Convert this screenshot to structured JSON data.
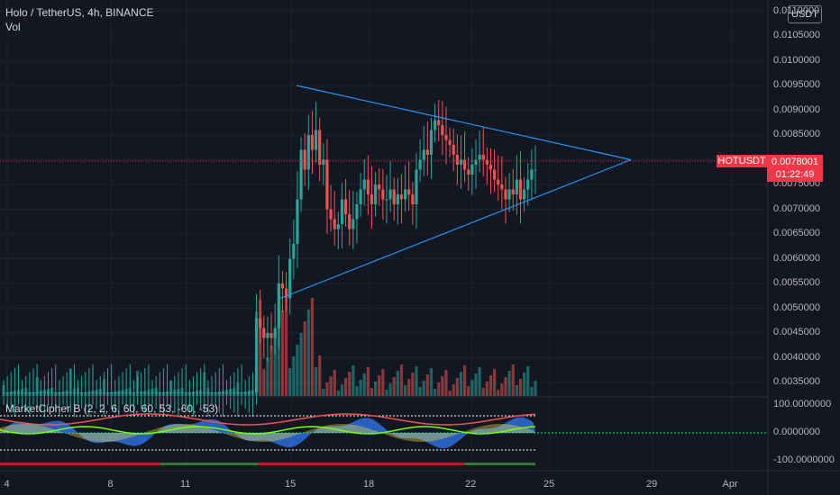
{
  "header": {
    "title": "Holo / TetherUS, 4h, BINANCE",
    "vol_label": "Vol",
    "indicator_label": "MarketCipher B (2, 2, 6, 60, 60, 53, -60, -53)"
  },
  "currency_badge": "USDT",
  "price_axis": {
    "labels": [
      "0.0110000",
      "0.0105000",
      "0.0100000",
      "0.0095000",
      "0.0090000",
      "0.0085000",
      "0.0080000",
      "0.0075000",
      "0.0070000",
      "0.0065000",
      "0.0060000",
      "0.0055000",
      "0.0050000",
      "0.0045000",
      "0.0040000",
      "0.0035000"
    ]
  },
  "indicator_axis": {
    "labels": [
      "100.0000000",
      "0.0000000",
      "-100.0000000"
    ]
  },
  "time_axis": {
    "labels": [
      "4",
      "8",
      "11",
      "15",
      "18",
      "22",
      "25",
      "29",
      "Apr"
    ]
  },
  "symbol_tag": "HOTUSDT",
  "last_price": "0.0078001",
  "countdown": "01:22:49",
  "colors": {
    "background": "#131722",
    "up": "#26a69a",
    "down": "#ef5350",
    "trendline": "#2196f3",
    "price_tag": "#f23645"
  },
  "chart_data": {
    "type": "candlestick",
    "title": "Holo / TetherUS, 4h, BINANCE",
    "x_ticks": [
      "4",
      "8",
      "11",
      "15",
      "18",
      "22",
      "25",
      "29",
      "Apr"
    ],
    "price_range": [
      0.0031,
      0.0111
    ],
    "last_price": 0.0078001,
    "price_series_approx": [
      0.0033,
      0.0033,
      0.0033,
      0.0033,
      0.0033,
      0.0033,
      0.0033,
      0.0033,
      0.0033,
      0.0033,
      0.0033,
      0.0033,
      0.0033,
      0.0033,
      0.0033,
      0.0033,
      0.0033,
      0.0033,
      0.0033,
      0.0033,
      0.0033,
      0.0033,
      0.0033,
      0.0033,
      0.0033,
      0.0033,
      0.0033,
      0.0033,
      0.0033,
      0.0033,
      0.0033,
      0.0033,
      0.0033,
      0.0033,
      0.0033,
      0.0033,
      0.0033,
      0.0033,
      0.0033,
      0.0033,
      0.0033,
      0.0033,
      0.0033,
      0.0033,
      0.0033,
      0.0033,
      0.0033,
      0.0033,
      0.0033,
      0.0033,
      0.0033,
      0.0033,
      0.0033,
      0.0033,
      0.0033,
      0.0033,
      0.0033,
      0.0033,
      0.0033,
      0.0033,
      0.0033,
      0.0033,
      0.0033,
      0.0033,
      0.0033,
      0.0033,
      0.0033,
      0.0033,
      0.0048,
      0.0046,
      0.0044,
      0.0045,
      0.0044,
      0.0046,
      0.0055,
      0.0054,
      0.0052,
      0.006,
      0.0063,
      0.0072,
      0.0082,
      0.0078,
      0.0085,
      0.0082,
      0.0086,
      0.0079,
      0.008,
      0.007,
      0.0068,
      0.0066,
      0.0067,
      0.0072,
      0.0069,
      0.0066,
      0.0068,
      0.0071,
      0.0074,
      0.0076,
      0.0073,
      0.0071,
      0.0075,
      0.0074,
      0.0072,
      0.0072,
      0.0074,
      0.0071,
      0.0073,
      0.0072,
      0.0074,
      0.0073,
      0.0071,
      0.0078,
      0.008,
      0.0082,
      0.0081,
      0.0086,
      0.0088,
      0.0087,
      0.0085,
      0.0084,
      0.0083,
      0.0081,
      0.0079,
      0.008,
      0.0078,
      0.0077,
      0.0079,
      0.008,
      0.0081,
      0.008,
      0.0079,
      0.0078,
      0.0076,
      0.0075,
      0.0074,
      0.0072,
      0.0074,
      0.0073,
      0.0076,
      0.0072,
      0.0074,
      0.0076,
      0.0078,
      0.0078
    ],
    "trendlines": [
      {
        "name": "upper",
        "from": {
          "x": "15",
          "y": 0.0095
        },
        "to": {
          "x": "28",
          "y": 0.008
        }
      },
      {
        "name": "lower",
        "from": {
          "x": "15",
          "y": 0.0051
        },
        "to": {
          "x": "28",
          "y": 0.008
        }
      }
    ],
    "indicator": {
      "name": "MarketCipher B",
      "ylim": [
        -100,
        100
      ],
      "ticks": [
        100,
        0,
        -100
      ]
    }
  }
}
